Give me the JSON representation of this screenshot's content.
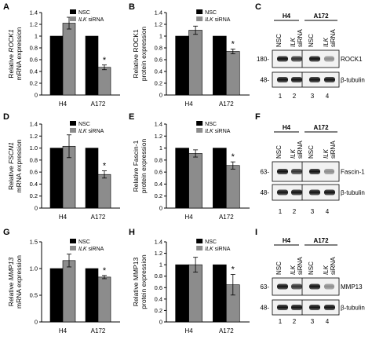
{
  "panels": [
    {
      "label": "A",
      "ylabel_pre": "Relative ",
      "ylabel_gene": "ROCK1",
      "ylabel_line2": "mRNA expression"
    },
    {
      "label": "B",
      "ylabel_line1": "Relative ROCK1",
      "ylabel_line2": "protein expression"
    },
    {
      "label": "C"
    },
    {
      "label": "D",
      "ylabel_pre": "Relative ",
      "ylabel_gene": "FSCN1",
      "ylabel_line2": "mRNA expression"
    },
    {
      "label": "E",
      "ylabel_line1": "Relative Fascin-1",
      "ylabel_line2": "protein expression"
    },
    {
      "label": "F"
    },
    {
      "label": "G",
      "ylabel_pre": "Relative ",
      "ylabel_gene": "MMP13",
      "ylabel_line2": "mRNA expression"
    },
    {
      "label": "H",
      "ylabel_line1": "Relative MMP13",
      "ylabel_line2": "protein expression"
    },
    {
      "label": "I"
    }
  ],
  "legend": {
    "nsc": "NSC",
    "ilk": "ILK",
    "sirna": " siRNA"
  },
  "colors": {
    "nsc": "#000000",
    "ilk": "#8c8c8c"
  },
  "significance_marker": "*",
  "chart_data": [
    {
      "type": "bar",
      "panel": "A",
      "categories": [
        "H4",
        "A172"
      ],
      "ylim": [
        0,
        1.4
      ],
      "yticks": [
        "0",
        "0.2",
        "0.4",
        "0.6",
        "0.8",
        "1",
        "1.2",
        "1.4"
      ],
      "series": [
        {
          "name": "NSC",
          "values": [
            1.0,
            1.0
          ],
          "errors": [
            0,
            0
          ]
        },
        {
          "name": "ILK siRNA",
          "values": [
            1.22,
            0.47
          ],
          "errors": [
            0.1,
            0.04
          ]
        }
      ],
      "significant": [
        false,
        true
      ]
    },
    {
      "type": "bar",
      "panel": "B",
      "categories": [
        "H4",
        "A172"
      ],
      "ylim": [
        0,
        1.4
      ],
      "yticks": [
        "0",
        "0.2",
        "0.4",
        "0.6",
        "0.8",
        "1",
        "1.2",
        "1.4"
      ],
      "series": [
        {
          "name": "NSC",
          "values": [
            1.0,
            1.0
          ],
          "errors": [
            0,
            0
          ]
        },
        {
          "name": "ILK siRNA",
          "values": [
            1.1,
            0.74
          ],
          "errors": [
            0.07,
            0.04
          ]
        }
      ],
      "significant": [
        false,
        true
      ]
    },
    {
      "type": "bar",
      "panel": "D",
      "categories": [
        "H4",
        "A172"
      ],
      "ylim": [
        0,
        1.4
      ],
      "yticks": [
        "0",
        "0.2",
        "0.4",
        "0.6",
        "0.8",
        "1.0",
        "1.2",
        "1.4"
      ],
      "series": [
        {
          "name": "NSC",
          "values": [
            1.0,
            1.0
          ],
          "errors": [
            0,
            0
          ]
        },
        {
          "name": "ILK siRNA",
          "values": [
            1.03,
            0.56
          ],
          "errors": [
            0.19,
            0.06
          ]
        }
      ],
      "significant": [
        false,
        true
      ]
    },
    {
      "type": "bar",
      "panel": "E",
      "categories": [
        "H4",
        "A172"
      ],
      "ylim": [
        0,
        1.4
      ],
      "yticks": [
        "0",
        "0.2",
        "0.4",
        "0.6",
        "0.8",
        "1",
        "1.2",
        "1.4"
      ],
      "series": [
        {
          "name": "NSC",
          "values": [
            1.0,
            1.0
          ],
          "errors": [
            0,
            0
          ]
        },
        {
          "name": "ILK siRNA",
          "values": [
            0.91,
            0.71
          ],
          "errors": [
            0.06,
            0.06
          ]
        }
      ],
      "significant": [
        false,
        true
      ]
    },
    {
      "type": "bar",
      "panel": "G",
      "categories": [
        "H4",
        "A172"
      ],
      "ylim": [
        0,
        1.5
      ],
      "yticks": [
        "0",
        "0.5",
        "1.0",
        "1.5"
      ],
      "series": [
        {
          "name": "NSC",
          "values": [
            1.0,
            1.0
          ],
          "errors": [
            0,
            0
          ]
        },
        {
          "name": "ILK siRNA",
          "values": [
            1.15,
            0.84
          ],
          "errors": [
            0.12,
            0.03
          ]
        }
      ],
      "significant": [
        false,
        true
      ]
    },
    {
      "type": "bar",
      "panel": "H",
      "categories": [
        "H4",
        "A172"
      ],
      "ylim": [
        0,
        1.4
      ],
      "yticks": [
        "0",
        "0.2",
        "0.4",
        "0.6",
        "0.8",
        "1",
        "1.2",
        "1.4"
      ],
      "series": [
        {
          "name": "NSC",
          "values": [
            1.0,
            1.0
          ],
          "errors": [
            0,
            0
          ]
        },
        {
          "name": "ILK siRNA",
          "values": [
            1.0,
            0.65
          ],
          "errors": [
            0.13,
            0.18
          ]
        }
      ],
      "significant": [
        false,
        true
      ]
    }
  ],
  "blots": [
    {
      "panel": "C",
      "groups": [
        "H4",
        "A172"
      ],
      "lane_labels": [
        "NSC",
        "ILK",
        "siRNA"
      ],
      "bands": [
        {
          "marker": "180",
          "name": "ROCK1"
        },
        {
          "marker": "48",
          "name": "β-tubulin"
        }
      ],
      "lanes": [
        "1",
        "2",
        "3",
        "4"
      ]
    },
    {
      "panel": "F",
      "groups": [
        "H4",
        "A172"
      ],
      "lane_labels": [
        "NSC",
        "ILK",
        "siRNA"
      ],
      "bands": [
        {
          "marker": "63",
          "name": "Fascin-1"
        },
        {
          "marker": "48",
          "name": "β-tubulin"
        }
      ],
      "lanes": [
        "1",
        "2",
        "3",
        "4"
      ]
    },
    {
      "panel": "I",
      "groups": [
        "H4",
        "A172"
      ],
      "lane_labels": [
        "NSC",
        "ILK",
        "siRNA"
      ],
      "bands": [
        {
          "marker": "63",
          "name": "MMP13"
        },
        {
          "marker": "48",
          "name": "β-tubulin"
        }
      ],
      "lanes": [
        "1",
        "2",
        "3",
        "4"
      ]
    }
  ]
}
